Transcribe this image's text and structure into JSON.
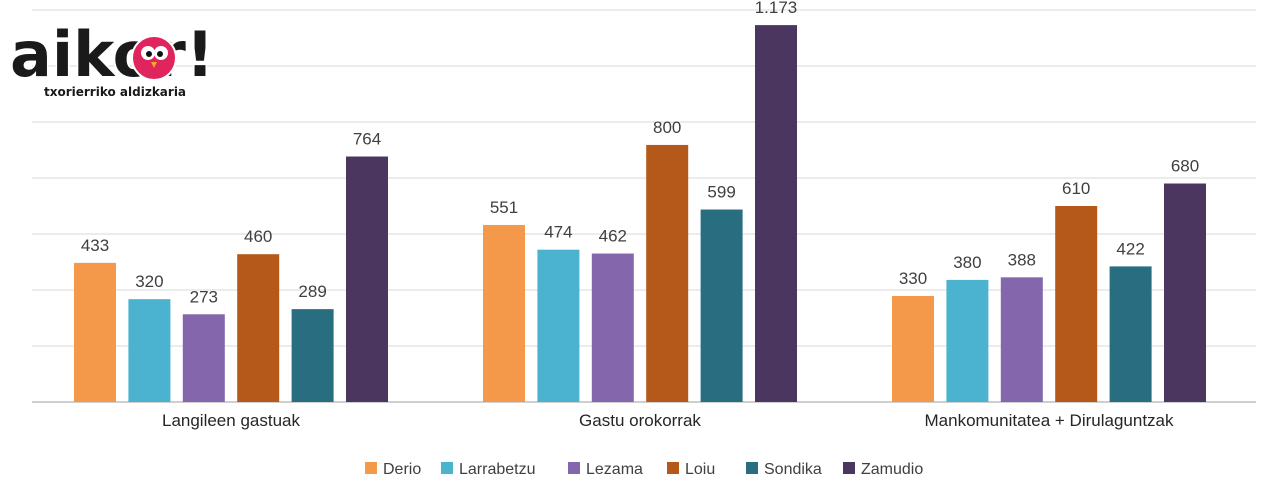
{
  "logo": {
    "wordmark": "aikor!",
    "tagline": "txorierriko aldizkaria"
  },
  "chart_data": {
    "type": "bar",
    "categories": [
      "Langileen gastuak",
      "Gastu orokorrak",
      "Mankomunitatea + Dirulaguntzak"
    ],
    "series": [
      {
        "name": "Derio",
        "color": "#f4984a",
        "values": [
          433,
          551,
          330
        ],
        "labels": [
          "433",
          "551",
          "330"
        ]
      },
      {
        "name": "Larrabetzu",
        "color": "#4bb3cf",
        "values": [
          320,
          474,
          380
        ],
        "labels": [
          "320",
          "474",
          "380"
        ]
      },
      {
        "name": "Lezama",
        "color": "#8466ad",
        "values": [
          273,
          462,
          388
        ],
        "labels": [
          "273",
          "462",
          "388"
        ]
      },
      {
        "name": "Loiu",
        "color": "#b5591a",
        "values": [
          460,
          800,
          610
        ],
        "labels": [
          "460",
          "800",
          "610"
        ]
      },
      {
        "name": "Sondika",
        "color": "#286d80",
        "values": [
          289,
          599,
          422
        ],
        "labels": [
          "289",
          "599",
          "422"
        ]
      },
      {
        "name": "Zamudio",
        "color": "#4b3660",
        "values": [
          764,
          1173,
          680
        ],
        "labels": [
          "764",
          "1.173",
          "680"
        ]
      }
    ],
    "ylim": [
      0,
      1220
    ],
    "grid": true,
    "legend_position": "bottom"
  }
}
